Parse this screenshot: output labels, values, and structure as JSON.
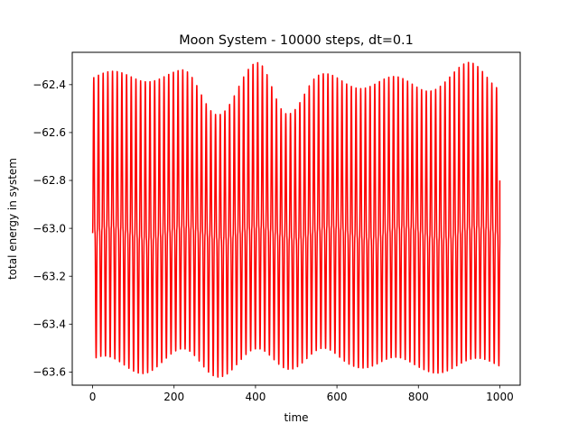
{
  "chart_data": {
    "type": "line",
    "title": "Moon System - 10000 steps, dt=0.1",
    "xlabel": "time",
    "ylabel": "total energy in system",
    "xlim": [
      -50,
      1050
    ],
    "ylim": [
      -63.655,
      -62.265
    ],
    "xticks": [
      0,
      200,
      400,
      600,
      800,
      1000
    ],
    "yticks": [
      -63.6,
      -63.4,
      -63.2,
      -63.0,
      -62.8,
      -62.6,
      -62.4
    ],
    "xtick_labels": [
      "0",
      "200",
      "400",
      "600",
      "800",
      "1000"
    ],
    "ytick_labels": [
      "−63.6",
      "−63.4",
      "−63.2",
      "−63.0",
      "−62.8",
      "−62.6",
      "−62.4"
    ],
    "grid": false,
    "legend": "none",
    "series": [
      {
        "color": "#ff0000",
        "center": -63.02,
        "x_start": 0,
        "x_end": 1000,
        "end_value": -62.8,
        "fast_period": 11.5,
        "envelope_peaks_x": [
          0,
          105,
          220,
          305,
          405,
          475,
          555,
          630,
          715,
          805,
          915,
          1000
        ],
        "upper_peaks": [
          -62.37,
          -62.36,
          -62.36,
          -62.5,
          -62.33,
          -62.5,
          -62.37,
          -62.4,
          -62.37,
          -62.42,
          -62.32,
          -62.41
        ],
        "lower_peaks": [
          -63.55,
          -63.59,
          -63.53,
          -63.6,
          -63.53,
          -63.57,
          -63.52,
          -63.57,
          -63.55,
          -63.59,
          -63.57,
          -63.57
        ]
      }
    ]
  }
}
